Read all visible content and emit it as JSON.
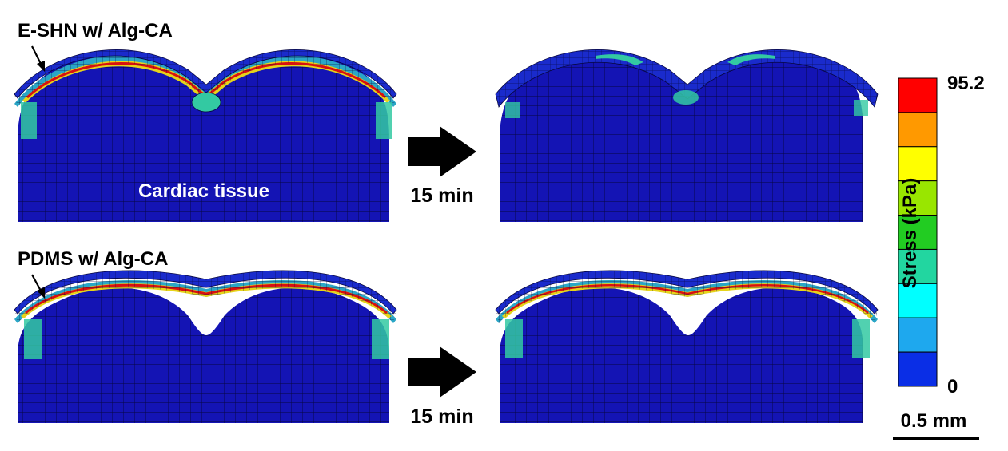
{
  "panels": [
    {
      "label": "E-SHN w/ Alg-CA",
      "tissue_label": "Cardiac tissue"
    },
    {
      "label": "PDMS w/ Alg-CA"
    }
  ],
  "arrow_label": "15 min",
  "colorbar": {
    "title": "Stress (kPa)",
    "max": "95.2",
    "min": "0",
    "levels": [
      "#ff0000",
      "#ff9900",
      "#ffff00",
      "#99e600",
      "#22cc22",
      "#22d6a0",
      "#00ffff",
      "#1ea8ee",
      "#0a2ee6"
    ]
  },
  "scale_bar": "0.5 mm",
  "colors": {
    "tissue": "#1414b4",
    "mesh_line": "#050538",
    "high_stress": "#d81010",
    "mid_stress": "#e6d41a",
    "low_stress": "#33c9a2",
    "arrow": "#000000"
  }
}
